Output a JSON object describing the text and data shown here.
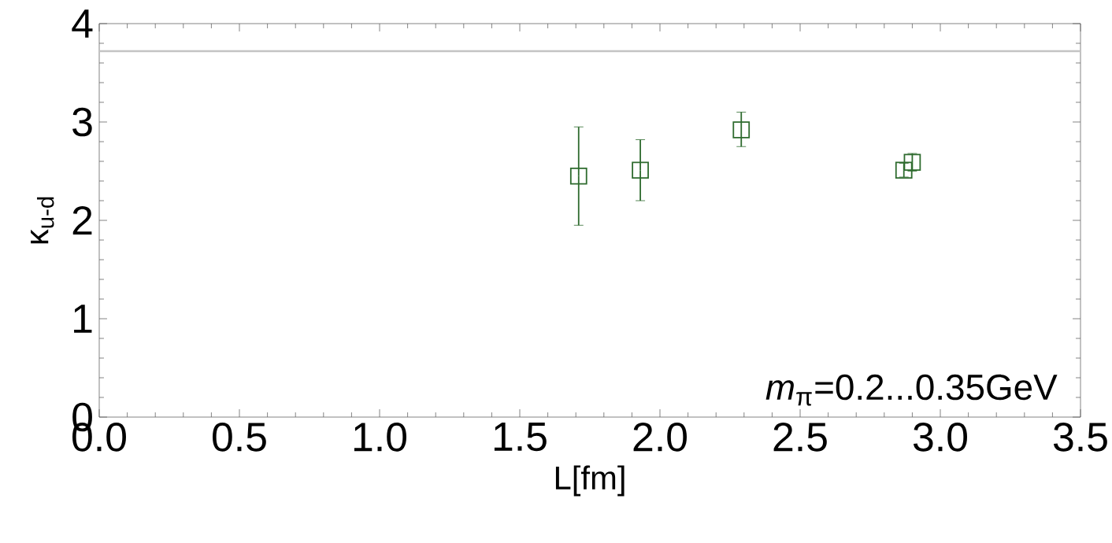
{
  "chart_data": {
    "type": "scatter",
    "xlabel": "L[fm]",
    "ylabel": "κ$_{u-d}$",
    "x": [
      1.71,
      1.93,
      2.29,
      2.87,
      2.9
    ],
    "values": [
      2.45,
      2.51,
      2.92,
      2.51,
      2.59
    ],
    "errors": [
      [
        1.95,
        2.95
      ],
      [
        2.2,
        2.82
      ],
      [
        2.75,
        3.1
      ],
      [
        2.44,
        2.58
      ],
      [
        2.5,
        2.68
      ]
    ],
    "color": "#2e6b2e",
    "marker": "square",
    "xlim": [
      0,
      3.5
    ],
    "ylim": [
      0,
      4
    ],
    "xticks": [
      {
        "value": 0,
        "label": "0.0"
      },
      0.5,
      {
        "value": 1,
        "label": "1.0"
      },
      1.5,
      {
        "value": 2,
        "label": "2.0"
      },
      2.5,
      {
        "value": 3,
        "label": "3.0"
      },
      3.5
    ],
    "yticks": [
      0,
      1,
      2,
      3,
      4
    ],
    "ref_lines": [
      {
        "axis": "y",
        "value": 3.72,
        "color": "#c4c4c4"
      }
    ],
    "annotations": [
      "*m*$_{π}$=0.2...0.35GeV"
    ],
    "grid": false
  }
}
